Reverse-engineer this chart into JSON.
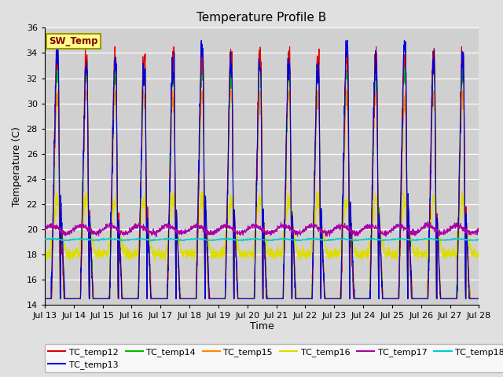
{
  "title": "Temperature Profile B",
  "xlabel": "Time",
  "ylabel": "Temperature (C)",
  "ylim": [
    14,
    36
  ],
  "yticks": [
    14,
    16,
    18,
    20,
    22,
    24,
    26,
    28,
    30,
    32,
    34,
    36
  ],
  "series_colors": {
    "TC_temp12": "#dd0000",
    "TC_temp13": "#0000dd",
    "TC_temp14": "#00bb00",
    "TC_temp15": "#ff8800",
    "TC_temp16": "#dddd00",
    "TC_temp17": "#aa00aa",
    "TC_temp18": "#00cccc"
  },
  "background_color": "#e0e0e0",
  "plot_bg_color": "#d0d0d0",
  "num_days": 15,
  "start_day": 13,
  "sw_temp_label": "SW_Temp",
  "figsize": [
    6.4,
    4.8
  ],
  "dpi": 100
}
